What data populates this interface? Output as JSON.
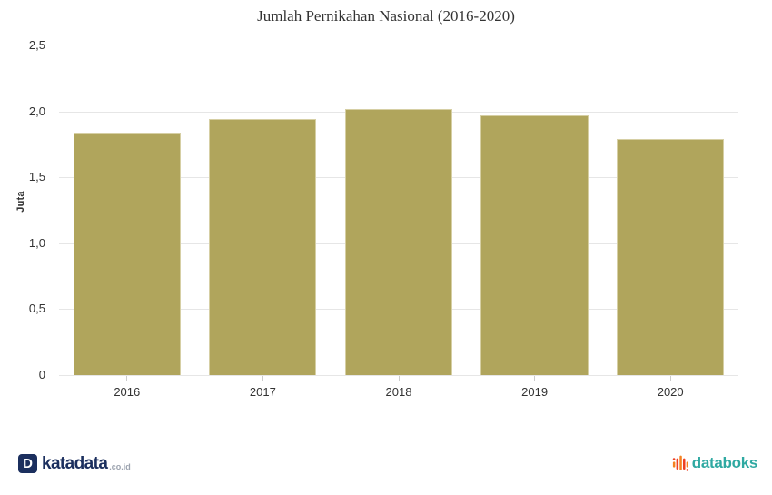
{
  "chart_data": {
    "type": "bar",
    "title": "Jumlah Pernikahan Nasional (2016-2020)",
    "categories": [
      "2016",
      "2017",
      "2018",
      "2019",
      "2020"
    ],
    "values": [
      1.84,
      1.94,
      2.02,
      1.97,
      1.79
    ],
    "xlabel": "",
    "ylabel": "Juta",
    "ylim": [
      0,
      2.5
    ],
    "ytick_labels": [
      "0",
      "0,5",
      "1,0",
      "1,5",
      "2,0",
      "2,5"
    ],
    "grid": true,
    "legend": false,
    "bar_color": "#b0a55c"
  },
  "footer": {
    "katadata": {
      "icon_letter": "D",
      "brand": "katadata",
      "suffix": ".co.id"
    },
    "databoks": {
      "brand": "databoks"
    }
  },
  "colors": {
    "bar": "#b0a55c",
    "bar_border": "#d6cfa4",
    "grid": "#e6e6e6",
    "axis": "#cccccc",
    "text": "#333333",
    "katadata_navy": "#1b2f5e",
    "katadata_suffix_gray": "#9ca3af",
    "databoks_teal": "#2fa9a2",
    "databoks_orange": "#f58220",
    "databoks_red": "#ee4123"
  }
}
